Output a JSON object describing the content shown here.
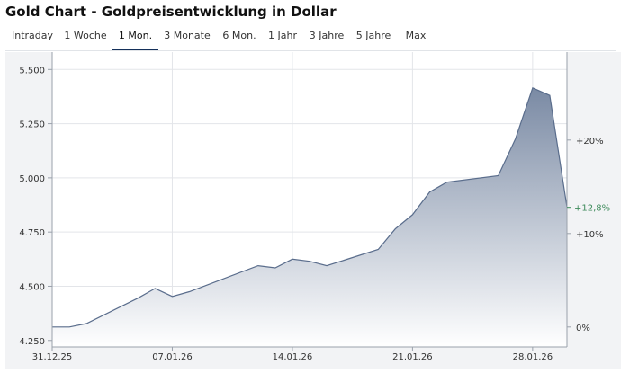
{
  "page": {
    "title": "Gold Chart - Goldpreisentwicklung in Dollar"
  },
  "tabs": [
    {
      "label": "Intraday",
      "active": false
    },
    {
      "label": "1 Woche",
      "active": false
    },
    {
      "label": "1 Mon.",
      "active": true
    },
    {
      "label": "3 Monate",
      "active": false
    },
    {
      "label": "6 Mon.",
      "active": false
    },
    {
      "label": "1 Jahr",
      "active": false
    },
    {
      "label": "3 Jahre",
      "active": false
    },
    {
      "label": "5 Jahre",
      "active": false
    },
    {
      "label": "Max",
      "active": false
    }
  ],
  "colors": {
    "line": "#5a6d8c",
    "area_top": "#7a8aa4",
    "area_bottom": "#ffffff",
    "accent_tab": "#14305a",
    "pct_highlight": "#3d8a5a"
  },
  "chart_data": {
    "type": "area",
    "title": "Gold Chart - Goldpreisentwicklung in Dollar",
    "xlabel": "",
    "ylabel": "",
    "grid": true,
    "x": [
      "2025-12-31",
      "2026-01-01",
      "2026-01-02",
      "2026-01-05",
      "2026-01-06",
      "2026-01-07",
      "2026-01-08",
      "2026-01-09",
      "2026-01-12",
      "2026-01-13",
      "2026-01-14",
      "2026-01-15",
      "2026-01-16",
      "2026-01-19",
      "2026-01-20",
      "2026-01-21",
      "2026-01-22",
      "2026-01-23",
      "2026-01-26",
      "2026-01-27",
      "2026-01-28",
      "2026-01-29",
      "2026-01-30"
    ],
    "values": [
      4312,
      4312,
      4328,
      4445,
      4490,
      4453,
      4475,
      4505,
      4595,
      4585,
      4625,
      4615,
      4595,
      4670,
      4765,
      4830,
      4935,
      4980,
      5010,
      5180,
      5415,
      5380,
      4865
    ],
    "ylim": [
      4220,
      5580
    ],
    "yticks": [
      4250,
      4500,
      4750,
      5000,
      5250,
      5500
    ],
    "ytick_labels": [
      "4.250",
      "4.500",
      "4.750",
      "5.000",
      "5.250",
      "5.500"
    ],
    "xticks": [
      {
        "date": "2025-12-31",
        "label": "31.12.25"
      },
      {
        "date": "2026-01-07",
        "label": "07.01.26"
      },
      {
        "date": "2026-01-14",
        "label": "14.01.26"
      },
      {
        "date": "2026-01-21",
        "label": "21.01.26"
      },
      {
        "date": "2026-01-28",
        "label": "28.01.26"
      }
    ],
    "right_axis": {
      "ticks": [
        {
          "pct": 0,
          "label": "0%"
        },
        {
          "pct": 10,
          "label": "+10%"
        },
        {
          "pct": 20,
          "label": "+20%"
        }
      ],
      "current": {
        "pct": 12.8,
        "label": "+12,8%"
      }
    }
  }
}
